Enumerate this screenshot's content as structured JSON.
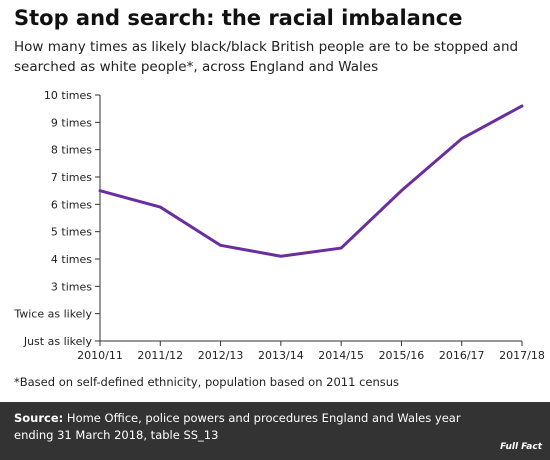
{
  "title": "Stop and search: the racial imbalance",
  "subtitle": "How many times as likely black/black British people are to be stopped and searched as white people*, across England and Wales",
  "footnote": "*Based on self-defined ethnicity, population based on 2011 census",
  "source": {
    "label": "Source:",
    "text": " Home Office, police powers and procedures England and Wales year ending 31 March 2018, table SS_13"
  },
  "logo": "Full Fact",
  "colors": {
    "line": "#6a2e9e",
    "axis": "#333333",
    "footer_bg": "#333333"
  },
  "chart_data": {
    "type": "line",
    "categories": [
      "2010/11",
      "2011/12",
      "2012/13",
      "2013/14",
      "2014/15",
      "2015/16",
      "2016/17",
      "2017/18"
    ],
    "series": [
      {
        "values": [
          6.5,
          5.9,
          4.5,
          4.1,
          4.4,
          6.5,
          8.4,
          9.6
        ]
      }
    ],
    "yticks": [
      {
        "value": 1,
        "label": "Just as likely"
      },
      {
        "value": 2,
        "label": "Twice as likely"
      },
      {
        "value": 3,
        "label": "3 times"
      },
      {
        "value": 4,
        "label": "4 times"
      },
      {
        "value": 5,
        "label": "5 times"
      },
      {
        "value": 6,
        "label": "6 times"
      },
      {
        "value": 7,
        "label": "7 times"
      },
      {
        "value": 8,
        "label": "8 times"
      },
      {
        "value": 9,
        "label": "9 times"
      },
      {
        "value": 10,
        "label": "10 times"
      }
    ],
    "ylim": [
      1,
      10
    ],
    "grid": false,
    "xlabel": "",
    "ylabel": ""
  }
}
